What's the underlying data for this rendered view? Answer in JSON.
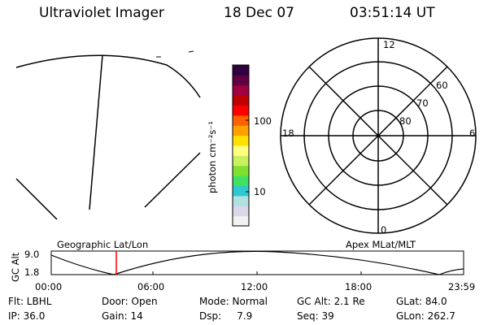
{
  "header": {
    "instrument": "Ultraviolet Imager",
    "date": "18 Dec 07",
    "time": "03:51:14 UT"
  },
  "colorbar": {
    "unit_label": "photon cm⁻²s⁻¹",
    "tick_labels": [
      "100",
      "10"
    ],
    "colors": [
      "#f2f2f2",
      "#d8d8e8",
      "#b0e0e0",
      "#30c8d0",
      "#40e060",
      "#80e030",
      "#c8f060",
      "#ffff80",
      "#ffe000",
      "#ffa000",
      "#ff6000",
      "#ff0000",
      "#c00000",
      "#a00040",
      "#600040",
      "#300040"
    ]
  },
  "polar_plot": {
    "mlt_labels": [
      "12",
      "18",
      "6",
      "0"
    ],
    "lat_labels": [
      "60",
      "70",
      "80"
    ]
  },
  "geo_label": "Geographic Lat/Lon",
  "apex_label": "Apex MLat/MLT",
  "altitude_panel": {
    "axis_title": "GC Alt",
    "y_labels": [
      "9.0",
      "1.8"
    ],
    "time_labels": [
      "00:00",
      "06:00",
      "12:00",
      "18:00",
      "23:59"
    ],
    "marker_color": "#ff0000"
  },
  "footer": {
    "flt": "Flt: LBHL",
    "door": "Door: Open",
    "mode": "Mode: Normal",
    "gc_alt": "GC Alt: 2.1 Re",
    "glat": "GLat:  84.0",
    "ip": "IP: 36.0",
    "gain": "Gain: 14",
    "dsp": "Dsp:     7.9",
    "seq": "Seq: 39",
    "glon": "GLon: 262.7"
  }
}
